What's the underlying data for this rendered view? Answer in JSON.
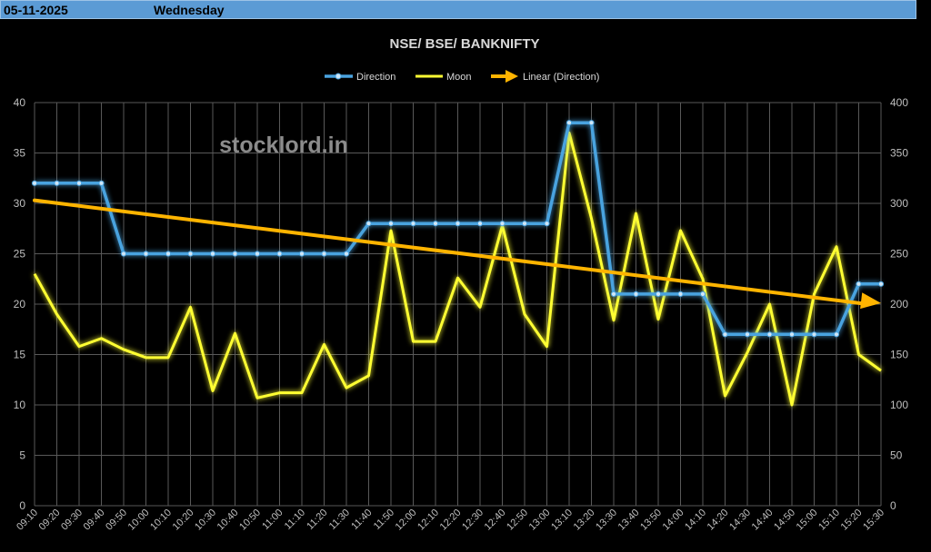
{
  "header": {
    "date": "05-11-2025",
    "day": "Wednesday"
  },
  "watermark": "stocklord.in",
  "colors": {
    "direction": "#4aa3df",
    "moon": "#ffff33",
    "trend": "#ffb400",
    "header_bg": "#5b9bd5"
  },
  "chart_data": {
    "type": "line",
    "title": "NSE/ BSE/ BANKNIFTY",
    "categories": [
      "09:10",
      "09:20",
      "09:30",
      "09:40",
      "09:50",
      "10:00",
      "10:10",
      "10:20",
      "10:30",
      "10:40",
      "10:50",
      "11:00",
      "11:10",
      "11:20",
      "11:30",
      "11:40",
      "11:50",
      "12:00",
      "12:10",
      "12:20",
      "12:30",
      "12:40",
      "12:50",
      "13:00",
      "13:10",
      "13:20",
      "13:30",
      "13:40",
      "13:50",
      "14:00",
      "14:10",
      "14:20",
      "14:30",
      "14:40",
      "14:50",
      "15:00",
      "15:10",
      "15:20",
      "15:30"
    ],
    "series": [
      {
        "name": "Direction",
        "axis": "left",
        "values": [
          32,
          32,
          32,
          32,
          25,
          25,
          25,
          25,
          25,
          25,
          25,
          25,
          25,
          25,
          25,
          28,
          28,
          28,
          28,
          28,
          28,
          28,
          28,
          28,
          38,
          38,
          21,
          21,
          21,
          21,
          21,
          17,
          17,
          17,
          17,
          17,
          17,
          22,
          22
        ]
      },
      {
        "name": "Moon",
        "axis": "right",
        "values": [
          230,
          190,
          158,
          166,
          155,
          147,
          147,
          197,
          114,
          171,
          107,
          112,
          112,
          160,
          117,
          129,
          273,
          163,
          163,
          226,
          197,
          278,
          190,
          158,
          370,
          285,
          184,
          290,
          185,
          273,
          225,
          109,
          152,
          200,
          100,
          210,
          257,
          150,
          134
        ]
      },
      {
        "name": "Linear (Direction)",
        "axis": "left",
        "trend": "linear",
        "from": 30.3,
        "to": 20.1
      }
    ],
    "y_left": {
      "min": 0,
      "max": 40,
      "step": 5
    },
    "y_right": {
      "min": 0,
      "max": 400,
      "step": 50
    },
    "legend_position": "top",
    "grid": true
  }
}
